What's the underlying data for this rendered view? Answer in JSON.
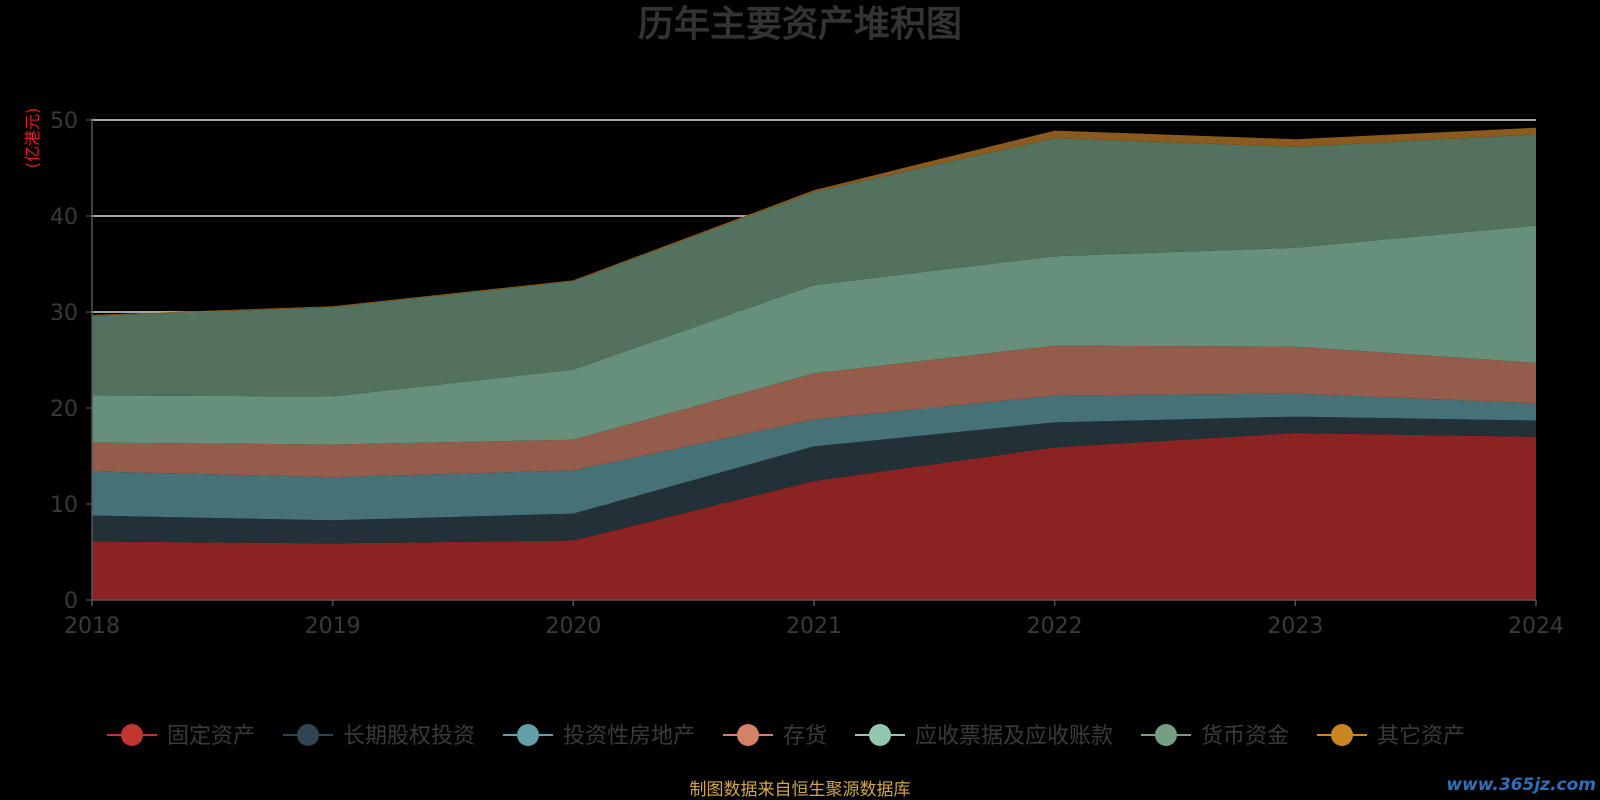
{
  "chart_data": {
    "type": "area",
    "stacked": true,
    "title": "历年主要资产堆积图",
    "unit_label": "(亿港元)",
    "x": [
      "2018",
      "2019",
      "2020",
      "2021",
      "2022",
      "2023",
      "2024"
    ],
    "ylim": [
      0,
      50
    ],
    "yticks": [
      "0",
      "10",
      "20",
      "30",
      "40",
      "50"
    ],
    "grid": true,
    "legend_position": "bottom",
    "series": [
      {
        "name": "固定资产",
        "color": "#8b2323",
        "values": [
          6.1,
          5.9,
          6.2,
          12.4,
          15.9,
          17.4,
          17.0
        ]
      },
      {
        "name": "长期股权投资",
        "color": "#223038",
        "values": [
          2.7,
          2.4,
          2.8,
          3.6,
          2.6,
          1.7,
          1.7
        ]
      },
      {
        "name": "投资性房地产",
        "color": "#467277",
        "values": [
          4.6,
          4.5,
          4.5,
          2.8,
          2.8,
          2.4,
          1.8
        ]
      },
      {
        "name": "存货",
        "color": "#955c4b",
        "values": [
          3.0,
          3.4,
          3.2,
          4.8,
          5.2,
          4.9,
          4.2
        ]
      },
      {
        "name": "应收票据及应收账款",
        "color": "#66907b",
        "values": [
          4.9,
          5.0,
          7.3,
          9.2,
          9.3,
          10.3,
          14.3
        ]
      },
      {
        "name": "货币资金",
        "color": "#53725e",
        "values": [
          8.3,
          9.3,
          9.2,
          9.7,
          12.3,
          10.5,
          9.5
        ]
      },
      {
        "name": "其它资产",
        "color": "#8a5a1f",
        "values": [
          0.1,
          0.1,
          0.1,
          0.2,
          0.8,
          0.8,
          0.7
        ]
      }
    ],
    "legend_marker_colors": [
      "#c23531",
      "#2f4554",
      "#61a0a8",
      "#d48265",
      "#91c7ae",
      "#749f83",
      "#ca8622"
    ]
  },
  "source_text": "制图数据来自恒生聚源数据库",
  "watermark_text": "www.365jz.com"
}
